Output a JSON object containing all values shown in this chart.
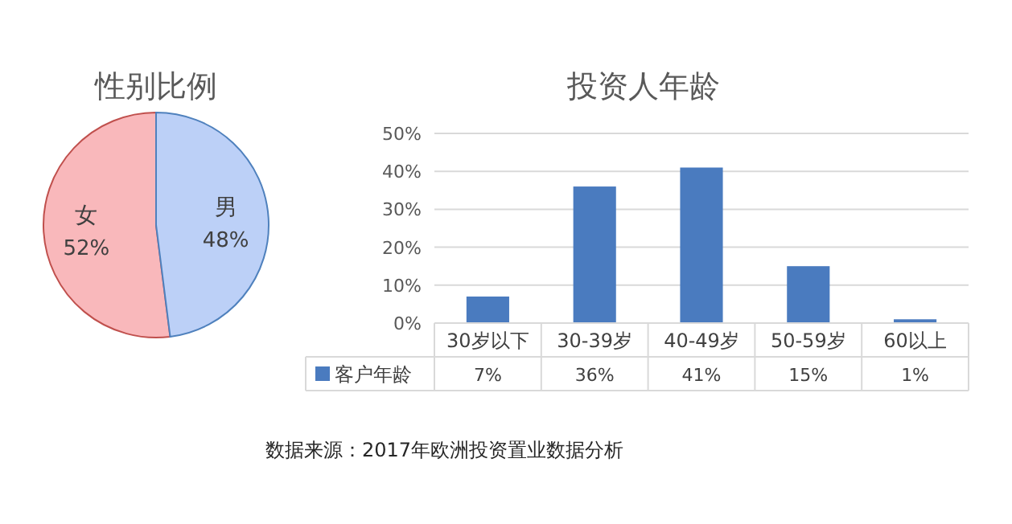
{
  "chart_data": [
    {
      "type": "pie",
      "title": "性别比例",
      "categories": [
        "女",
        "男"
      ],
      "values": [
        52,
        48
      ],
      "value_labels": [
        "52%",
        "48%"
      ],
      "colors": [
        "#f9b8bb",
        "#bcd0f7"
      ]
    },
    {
      "type": "bar",
      "title": "投资人年龄",
      "categories": [
        "30岁以下",
        "30-39岁",
        "40-49岁",
        "50-59岁",
        "60以上"
      ],
      "series": [
        {
          "name": "客户年龄",
          "color": "#4a7bbf",
          "values": [
            7,
            36,
            41,
            15,
            1
          ],
          "value_labels": [
            "7%",
            "36%",
            "41%",
            "15%",
            "1%"
          ]
        }
      ],
      "ylim": [
        0,
        50
      ],
      "yticks": [
        {
          "value": 0,
          "label": "0%"
        },
        {
          "value": 10,
          "label": "10%"
        },
        {
          "value": 20,
          "label": "20%"
        },
        {
          "value": 30,
          "label": "30%"
        },
        {
          "value": 40,
          "label": "40%"
        },
        {
          "value": 50,
          "label": "50%"
        }
      ],
      "grid": "y",
      "legend": "bottom",
      "annotations": [
        "数据来源：2017年欧洲投资置业数据分析"
      ]
    }
  ]
}
